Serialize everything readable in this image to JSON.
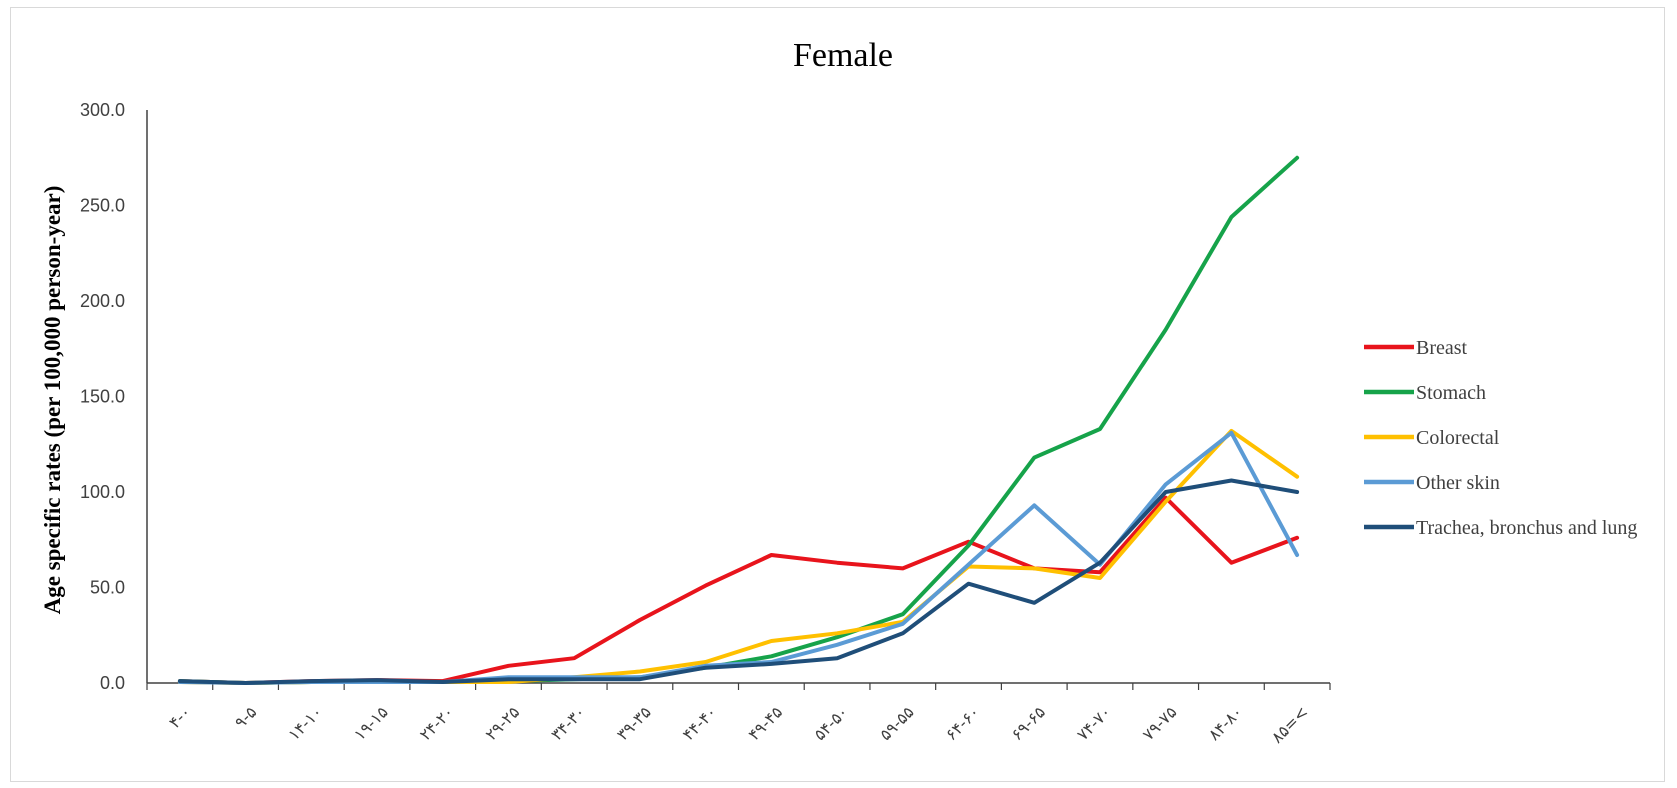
{
  "chart_data": {
    "type": "line",
    "title": "Female",
    "ylabel": "Age specific rates (per 100,000 person-year)",
    "xlabel": "",
    "ylim": [
      0,
      300
    ],
    "yticks": [
      "0.0",
      "50.0",
      "100.0",
      "150.0",
      "200.0",
      "250.0",
      "300.0"
    ],
    "categories": [
      "۴-۰",
      "۹-۵",
      "۱۴-۱۰",
      "۱۹-۱۵",
      "۲۴-۲۰",
      "۲۹-۲۵",
      "۳۴-۳۰",
      "۳۹-۳۵",
      "۴۴-۴۰",
      "۴۹-۴۵",
      "۵۴-۵۰",
      "۵۹-۵۵",
      "۶۴-۶۰",
      "۶۹-۶۵",
      "۷۴-۷۰",
      "۷۹-۷۵",
      "۸۴-۸۰",
      "۸۵=<"
    ],
    "grid": false,
    "legend_position": "right",
    "series": [
      {
        "name": "Breast",
        "color": "#e8141c",
        "values": [
          1.0,
          0.0,
          1.0,
          1.5,
          1.0,
          9.0,
          13.0,
          33.0,
          51.0,
          67.0,
          63.0,
          60.0,
          74.0,
          60.0,
          58.0,
          97.0,
          63.0,
          76.0
        ]
      },
      {
        "name": "Stomach",
        "color": "#16a34a",
        "values": [
          1.0,
          0.0,
          0.5,
          1.0,
          0.5,
          1.0,
          2.0,
          3.0,
          8.0,
          14.0,
          24.0,
          36.0,
          72.0,
          118.0,
          133.0,
          185.0,
          244.0,
          275.0
        ]
      },
      {
        "name": "Colorectal",
        "color": "#ffc000",
        "values": [
          0.5,
          0.0,
          0.5,
          0.5,
          0.5,
          0.5,
          3.0,
          6.0,
          11.0,
          22.0,
          26.0,
          32.0,
          61.0,
          60.0,
          55.0,
          95.0,
          132.0,
          108.0
        ]
      },
      {
        "name": "Other skin",
        "color": "#5b9bd5",
        "values": [
          0.5,
          0.0,
          0.5,
          0.5,
          0.5,
          3.0,
          3.0,
          3.0,
          9.0,
          11.0,
          20.0,
          31.0,
          62.0,
          93.0,
          62.0,
          104.0,
          131.0,
          67.0
        ]
      },
      {
        "name": "Trachea, bronchus and lung",
        "color": "#1f4e79",
        "values": [
          1.0,
          0.0,
          1.0,
          1.5,
          0.5,
          2.0,
          2.0,
          2.0,
          8.0,
          10.0,
          13.0,
          26.0,
          52.0,
          42.0,
          63.0,
          100.0,
          106.0,
          100.0
        ]
      }
    ]
  }
}
